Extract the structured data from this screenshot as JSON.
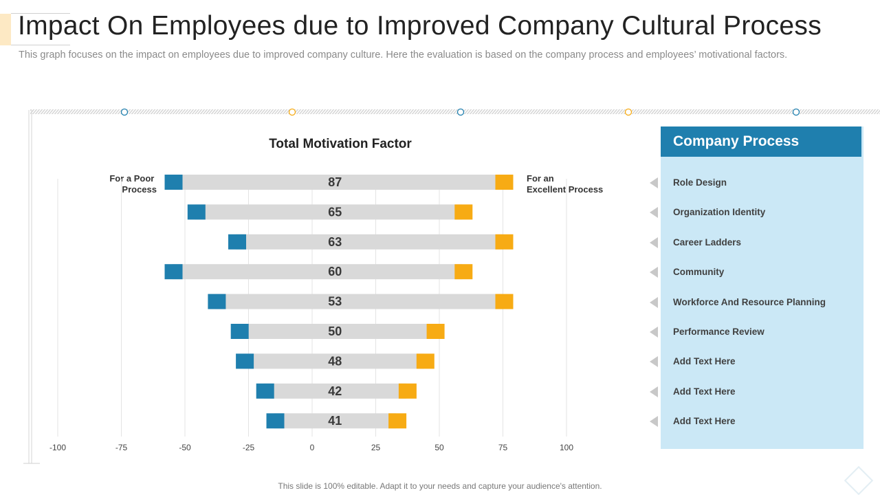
{
  "header": {
    "title": "Impact On Employees due to Improved Company Cultural Process",
    "subtitle": "This graph focuses on the impact on employees due to improved company culture.  Here the evaluation is based on the company process and employees’ motivational factors."
  },
  "colors": {
    "poor": "#1f7fae",
    "excellent": "#f7ab14",
    "bar": "#d9d9d9",
    "panel": "#cbe8f6",
    "panel_header": "#1f7fae"
  },
  "chart_data": {
    "type": "bar",
    "title": "Total Motivation Factor",
    "left_label": [
      "For a Poor",
      "Process"
    ],
    "right_label": [
      "For an",
      "Excellent Process"
    ],
    "x_ticks": [
      -100,
      -75,
      -50,
      -25,
      0,
      25,
      50,
      75,
      100
    ],
    "xlim": [
      -100,
      100
    ],
    "categories": [
      "Role Design",
      "Organization Identity",
      "Career Ladders",
      "Community",
      "Workforce And Resource Planning",
      "Performance Review",
      "Add Text Here",
      "Add Text Here",
      "Add Text Here"
    ],
    "values": [
      87,
      65,
      63,
      60,
      53,
      50,
      48,
      42,
      41
    ],
    "ranges": [
      [
        -55,
        75
      ],
      [
        -46,
        59
      ],
      [
        -30,
        75
      ],
      [
        -55,
        59
      ],
      [
        -38,
        75
      ],
      [
        -29,
        48
      ],
      [
        -27,
        44
      ],
      [
        -19,
        37
      ],
      [
        -15,
        33
      ]
    ]
  },
  "panel": {
    "title": "Company Process",
    "items": [
      "Role Design",
      "Organization Identity",
      "Career Ladders",
      "Community",
      "Workforce And Resource Planning",
      "Performance Review",
      "Add Text Here",
      "Add Text Here",
      "Add Text Here"
    ]
  },
  "footer": {
    "text": "This slide is 100% editable. Adapt it to your needs and capture your audience's attention."
  }
}
